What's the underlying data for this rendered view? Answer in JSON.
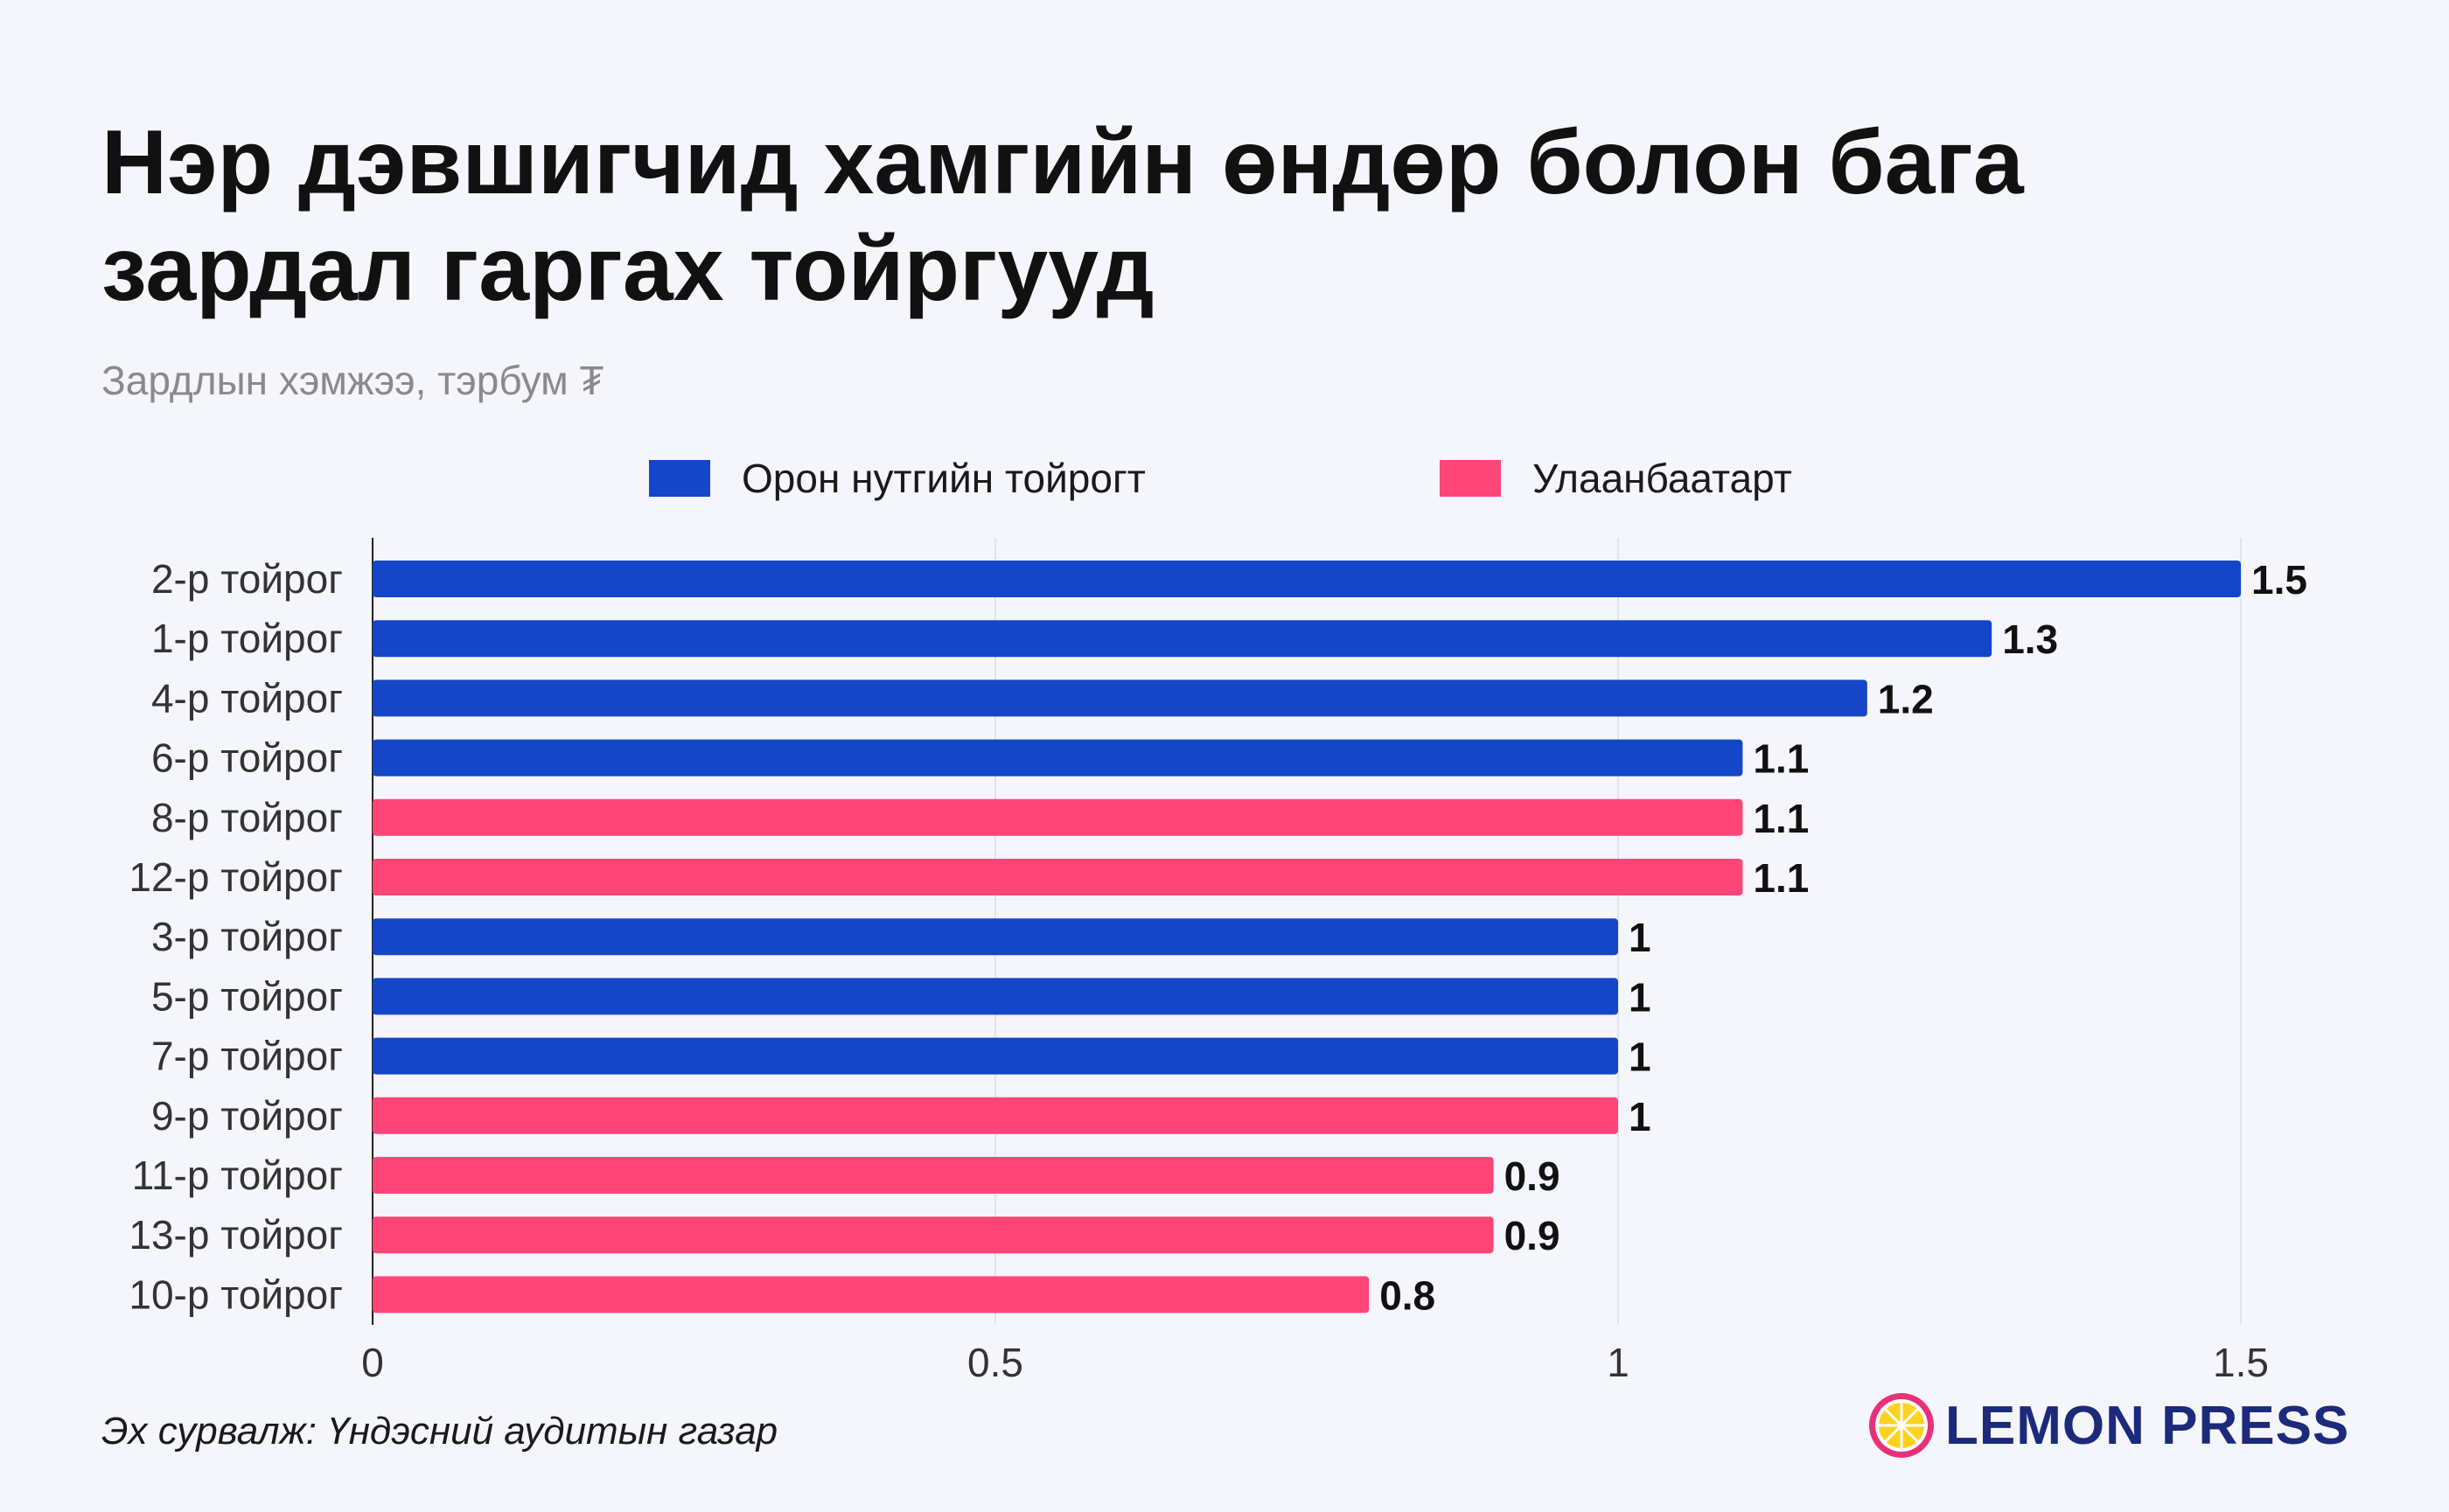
{
  "title_lines": [
    "Нэр дэвшигчид хамгийн өндөр болон бага",
    "зардал гаргах тойргууд"
  ],
  "subtitle": "Зардлын хэмжээ, тэрбум ₮",
  "source": "Эх сурвалж: Үндэсний аудитын газар",
  "logo": {
    "text": "LEMON PRESS",
    "icon": "lemon-slice-icon"
  },
  "colors": {
    "local": "#1446c8",
    "ub": "#ff4577",
    "grid": "#e3e3ea",
    "axis": "#222222",
    "label": "#111111"
  },
  "chart_data": {
    "type": "bar",
    "orientation": "horizontal",
    "title": "Нэр дэвшигчид хамгийн өндөр болон бага зардал гаргах тойргууд",
    "xlabel": "Зардлын хэмжээ, тэрбум ₮",
    "xlim": [
      0,
      1.6
    ],
    "xticks": [
      0,
      0.5,
      1,
      1.5
    ],
    "xtick_labels": [
      "0",
      "0.5",
      "1",
      "1.5"
    ],
    "series": [
      {
        "key": "local",
        "name": "Орон нутгийн тойрогт",
        "color": "#1446c8"
      },
      {
        "key": "ub",
        "name": "Улаанбаатарт",
        "color": "#ff4577"
      }
    ],
    "bars": [
      {
        "category": "2-р тойрог",
        "value": 1.5,
        "series": "local",
        "label": "1.5"
      },
      {
        "category": "1-р тойрог",
        "value": 1.3,
        "series": "local",
        "label": "1.3"
      },
      {
        "category": "4-р тойрог",
        "value": 1.2,
        "series": "local",
        "label": "1.2"
      },
      {
        "category": "6-р тойрог",
        "value": 1.1,
        "series": "local",
        "label": "1.1"
      },
      {
        "category": "8-р тойрог",
        "value": 1.1,
        "series": "ub",
        "label": "1.1"
      },
      {
        "category": "12-р тойрог",
        "value": 1.1,
        "series": "ub",
        "label": "1.1"
      },
      {
        "category": "3-р тойрог",
        "value": 1.0,
        "series": "local",
        "label": "1"
      },
      {
        "category": "5-р тойрог",
        "value": 1.0,
        "series": "local",
        "label": "1"
      },
      {
        "category": "7-р тойрог",
        "value": 1.0,
        "series": "local",
        "label": "1"
      },
      {
        "category": "9-р тойрог",
        "value": 1.0,
        "series": "ub",
        "label": "1"
      },
      {
        "category": "11-р тойрог",
        "value": 0.9,
        "series": "ub",
        "label": "0.9"
      },
      {
        "category": "13-р тойрог",
        "value": 0.9,
        "series": "ub",
        "label": "0.9"
      },
      {
        "category": "10-р тойрог",
        "value": 0.8,
        "series": "ub",
        "label": "0.8"
      }
    ]
  }
}
